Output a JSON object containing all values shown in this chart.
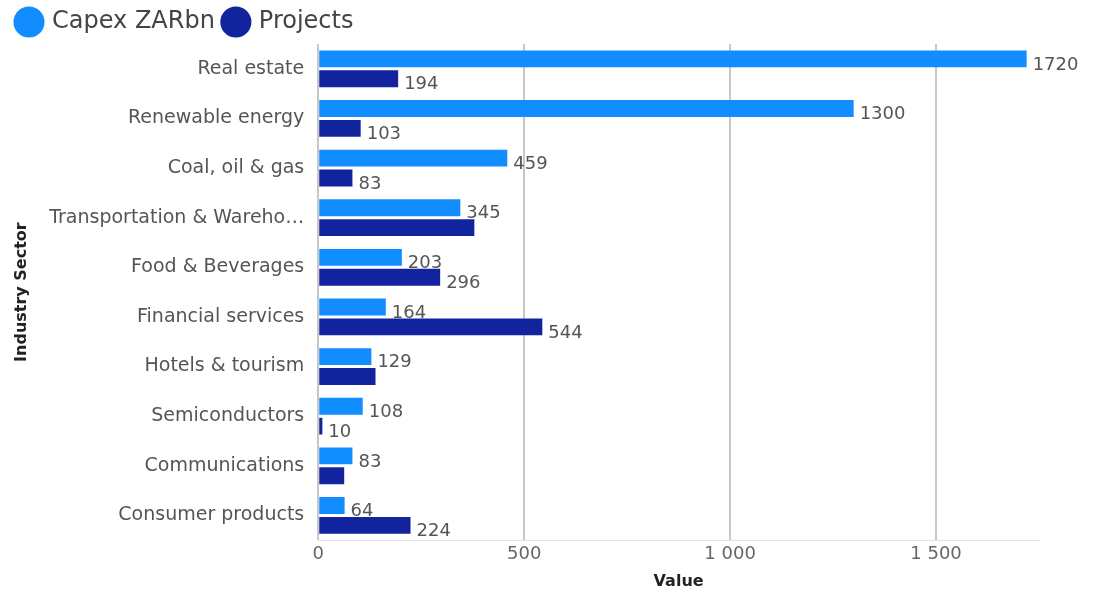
{
  "chart_data": {
    "type": "bar",
    "orientation": "horizontal",
    "ylabel": "Industry Sector",
    "xlabel": "Value",
    "categories": [
      "Real estate",
      "Renewable energy",
      "Coal, oil & gas",
      "Transportation & Wareho…",
      "Food & Beverages",
      "Financial services",
      "Hotels & tourism",
      "Semiconductors",
      "Communications",
      "Consumer products"
    ],
    "series": [
      {
        "name": "Capex ZARbn",
        "color": "#118dff",
        "values": [
          1720,
          1300,
          459,
          345,
          203,
          164,
          129,
          108,
          83,
          64
        ],
        "value_labels": [
          "1720",
          "1300",
          "459",
          "345",
          "203",
          "164",
          "129",
          "108",
          "83",
          "64"
        ]
      },
      {
        "name": "Projects",
        "color": "#12239e",
        "values": [
          194,
          103,
          83,
          379,
          296,
          544,
          139,
          10,
          63,
          224
        ],
        "value_labels": [
          "194",
          "103",
          "83",
          null,
          "296",
          "544",
          null,
          "10",
          null,
          "224"
        ]
      }
    ],
    "xlim": [
      0,
      1750
    ],
    "xticks": [
      0,
      500,
      {
        "value": 1000,
        "label": "1 000"
      },
      {
        "value": 1500,
        "label": "1 500"
      }
    ],
    "grid": "x",
    "legend": "top left"
  }
}
